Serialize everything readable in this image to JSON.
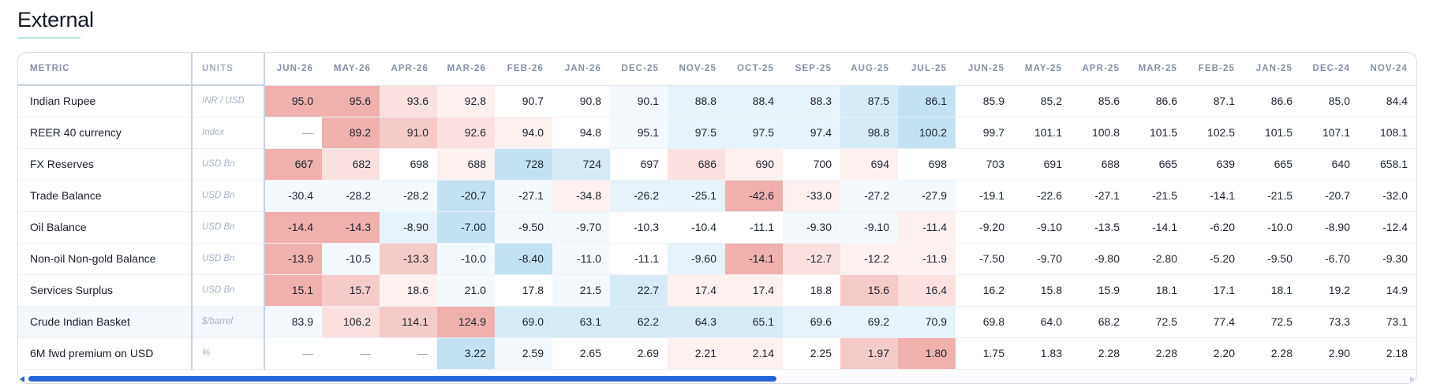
{
  "section": {
    "title": "External"
  },
  "colors": {
    "hot_strong": "#efb0ae",
    "hot_mid": "#f5cbc9",
    "hot_light": "#fae1df",
    "hot_faint": "#fdf1f0",
    "cool_strong": "#c3e1f1",
    "cool_mid": "#d6ebf6",
    "cool_light": "#e7f3fa",
    "cool_faint": "#f3f9fd",
    "scroll_thumb": "#2563d9",
    "title_underline": "#b9e4dc"
  },
  "table": {
    "metric_header": "METRIC",
    "units_header": "UNITS",
    "months": [
      "JUN-26",
      "MAY-26",
      "APR-26",
      "MAR-26",
      "FEB-26",
      "JAN-26",
      "DEC-25",
      "NOV-25",
      "OCT-25",
      "SEP-25",
      "AUG-25",
      "JUL-25",
      "JUN-25",
      "MAY-25",
      "APR-25",
      "MAR-25",
      "FEB-25",
      "JAN-25",
      "DEC-24",
      "NOV-24"
    ],
    "rows": [
      {
        "metric": "Indian Rupee",
        "units": "INR / USD",
        "highlight": false,
        "values": [
          "95.0",
          "95.6",
          "93.6",
          "92.8",
          "90.7",
          "90.8",
          "90.1",
          "88.8",
          "88.4",
          "88.3",
          "87.5",
          "86.1",
          "85.9",
          "85.2",
          "85.6",
          "86.6",
          "87.1",
          "86.6",
          "85.0",
          "84.4"
        ],
        "shades": [
          "hot_strong",
          "hot_strong",
          "hot_light",
          "hot_faint",
          "",
          "",
          "cool_faint",
          "cool_light",
          "cool_light",
          "cool_light",
          "cool_mid",
          "cool_strong",
          "",
          "",
          "",
          "",
          "",
          "",
          "",
          ""
        ]
      },
      {
        "metric": "REER 40 currency",
        "units": "Index",
        "highlight": false,
        "values": [
          "—",
          "89.2",
          "91.0",
          "92.6",
          "94.0",
          "94.8",
          "95.1",
          "97.5",
          "97.5",
          "97.4",
          "98.8",
          "100.2",
          "99.7",
          "101.1",
          "100.8",
          "101.5",
          "102.5",
          "101.5",
          "107.1",
          "108.1"
        ],
        "shades": [
          "",
          "hot_strong",
          "hot_mid",
          "hot_light",
          "hot_faint",
          "",
          "cool_faint",
          "cool_light",
          "cool_light",
          "cool_light",
          "cool_mid",
          "cool_strong",
          "",
          "",
          "",
          "",
          "",
          "",
          "",
          ""
        ]
      },
      {
        "metric": "FX Reserves",
        "units": "USD Bn",
        "highlight": false,
        "values": [
          "667",
          "682",
          "698",
          "688",
          "728",
          "724",
          "697",
          "686",
          "690",
          "700",
          "694",
          "698",
          "703",
          "691",
          "688",
          "665",
          "639",
          "665",
          "640",
          "658.1"
        ],
        "shades": [
          "hot_strong",
          "hot_light",
          "",
          "hot_faint",
          "cool_strong",
          "cool_mid",
          "",
          "hot_light",
          "hot_faint",
          "",
          "hot_faint",
          "",
          "",
          "",
          "",
          "",
          "",
          "",
          "",
          ""
        ]
      },
      {
        "metric": "Trade Balance",
        "units": "USD Bn",
        "highlight": false,
        "values": [
          "-30.4",
          "-28.2",
          "-28.2",
          "-20.7",
          "-27.1",
          "-34.8",
          "-26.2",
          "-25.1",
          "-42.6",
          "-33.0",
          "-27.2",
          "-27.9",
          "-19.1",
          "-22.6",
          "-27.1",
          "-21.5",
          "-14.1",
          "-21.5",
          "-20.7",
          "-32.0"
        ],
        "shades": [
          "cool_faint",
          "cool_faint",
          "cool_faint",
          "cool_strong",
          "cool_faint",
          "hot_faint",
          "cool_light",
          "cool_light",
          "hot_strong",
          "hot_faint",
          "cool_faint",
          "cool_faint",
          "",
          "",
          "",
          "",
          "",
          "",
          "",
          ""
        ]
      },
      {
        "metric": "Oil Balance",
        "units": "USD Bn",
        "highlight": false,
        "values": [
          "-14.4",
          "-14.3",
          "-8.90",
          "-7.00",
          "-9.50",
          "-9.70",
          "-10.3",
          "-10.4",
          "-11.1",
          "-9.30",
          "-9.10",
          "-11.4",
          "-9.20",
          "-9.10",
          "-13.5",
          "-14.1",
          "-6.20",
          "-10.0",
          "-8.90",
          "-12.4"
        ],
        "shades": [
          "hot_strong",
          "hot_strong",
          "cool_light",
          "cool_strong",
          "cool_faint",
          "cool_faint",
          "",
          "",
          "",
          "cool_faint",
          "cool_faint",
          "hot_faint",
          "",
          "",
          "",
          "",
          "",
          "",
          "",
          ""
        ]
      },
      {
        "metric": "Non-oil Non-gold Balance",
        "units": "USD Bn",
        "highlight": false,
        "values": [
          "-13.9",
          "-10.5",
          "-13.3",
          "-10.0",
          "-8.40",
          "-11.0",
          "-11.1",
          "-9.60",
          "-14.1",
          "-12.7",
          "-12.2",
          "-11.9",
          "-7.50",
          "-9.70",
          "-9.80",
          "-2.80",
          "-5.20",
          "-9.50",
          "-6.70",
          "-9.30"
        ],
        "shades": [
          "hot_strong",
          "cool_faint",
          "hot_mid",
          "cool_faint",
          "cool_strong",
          "cool_faint",
          "",
          "cool_light",
          "hot_strong",
          "hot_light",
          "hot_faint",
          "hot_faint",
          "",
          "",
          "",
          "",
          "",
          "",
          "",
          ""
        ]
      },
      {
        "metric": "Services Surplus",
        "units": "USD Bn",
        "highlight": false,
        "values": [
          "15.1",
          "15.7",
          "18.6",
          "21.0",
          "17.8",
          "21.5",
          "22.7",
          "17.4",
          "17.4",
          "18.8",
          "15.6",
          "16.4",
          "16.2",
          "15.8",
          "15.9",
          "18.1",
          "17.1",
          "18.1",
          "19.2",
          "14.9"
        ],
        "shades": [
          "hot_strong",
          "hot_mid",
          "hot_faint",
          "cool_faint",
          "",
          "cool_faint",
          "cool_mid",
          "hot_faint",
          "hot_faint",
          "",
          "hot_mid",
          "hot_light",
          "",
          "",
          "",
          "",
          "",
          "",
          "",
          ""
        ]
      },
      {
        "metric": "Crude Indian Basket",
        "units": "$/barrel",
        "highlight": true,
        "values": [
          "83.9",
          "106.2",
          "114.1",
          "124.9",
          "69.0",
          "63.1",
          "62.2",
          "64.3",
          "65.1",
          "69.6",
          "69.2",
          "70.9",
          "69.8",
          "64.0",
          "68.2",
          "72.5",
          "77.4",
          "72.5",
          "73.3",
          "73.1"
        ],
        "shades": [
          "cool_faint",
          "hot_light",
          "hot_mid",
          "hot_strong",
          "cool_mid",
          "cool_mid",
          "cool_mid",
          "cool_mid",
          "cool_mid",
          "cool_light",
          "cool_light",
          "cool_light",
          "",
          "",
          "",
          "",
          "",
          "",
          "",
          ""
        ]
      },
      {
        "metric": "6M fwd premium on USD",
        "units": "%",
        "highlight": false,
        "values": [
          "—",
          "—",
          "—",
          "3.22",
          "2.59",
          "2.65",
          "2.69",
          "2.21",
          "2.14",
          "2.25",
          "1.97",
          "1.80",
          "1.75",
          "1.83",
          "2.28",
          "2.28",
          "2.20",
          "2.28",
          "2.90",
          "2.18"
        ],
        "shades": [
          "",
          "",
          "",
          "cool_strong",
          "cool_faint",
          "",
          "",
          "hot_faint",
          "hot_faint",
          "",
          "hot_mid",
          "hot_strong",
          "",
          "",
          "",
          "",
          "",
          "",
          "",
          ""
        ]
      }
    ]
  }
}
